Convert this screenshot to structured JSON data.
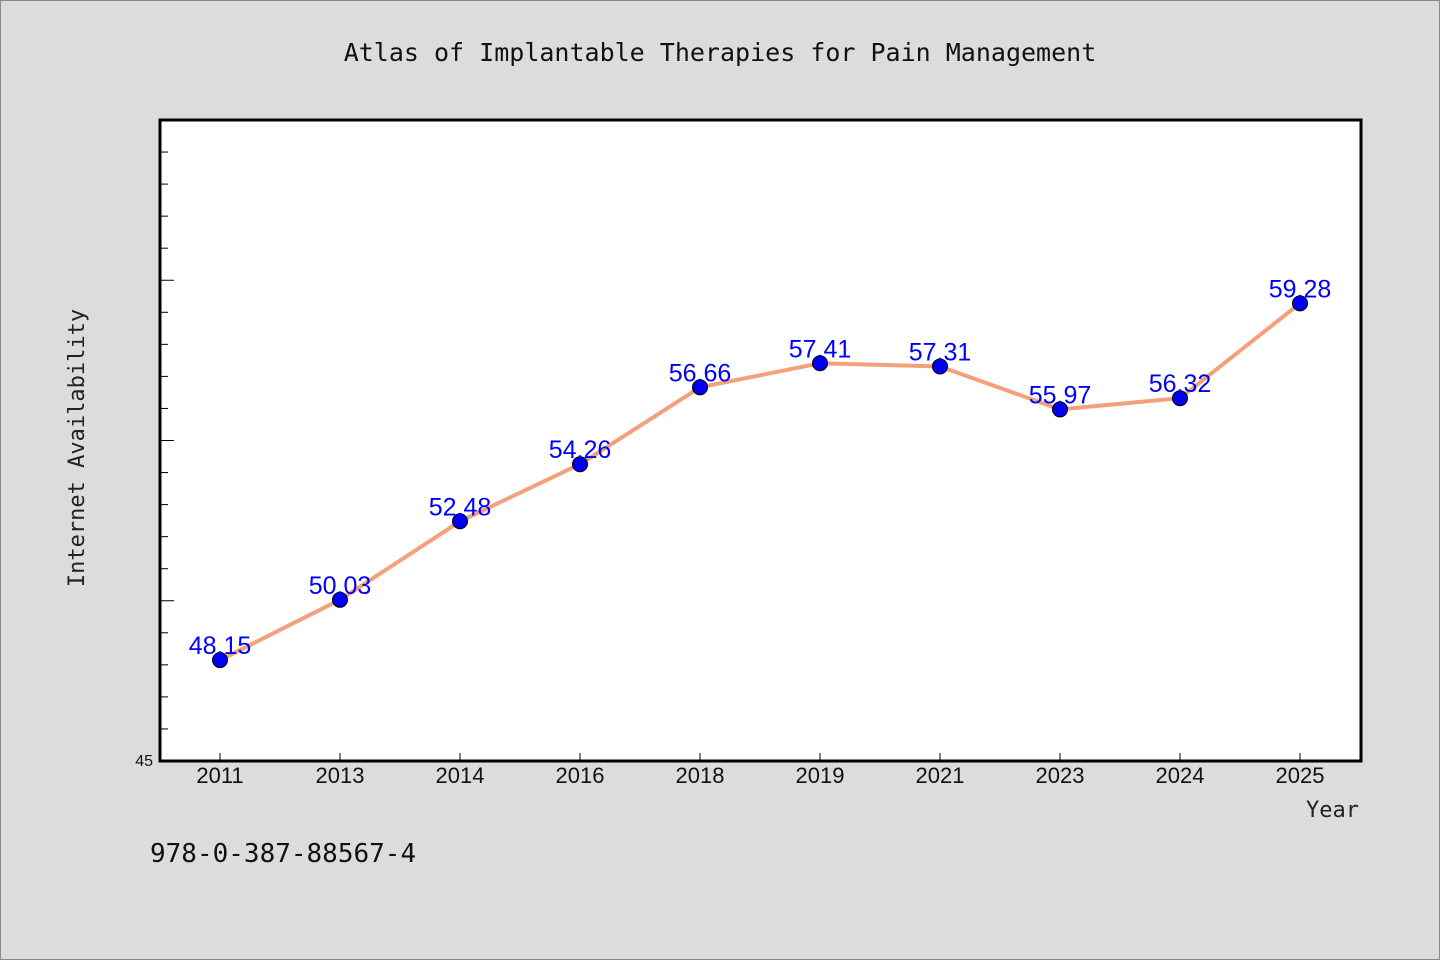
{
  "chart_data": {
    "type": "line",
    "title": "Atlas of Implantable Therapies for Pain Management",
    "xlabel": "Year",
    "ylabel": "Internet Availability",
    "categories": [
      "2011",
      "2013",
      "2014",
      "2016",
      "2018",
      "2019",
      "2021",
      "2023",
      "2024",
      "2025"
    ],
    "series": [
      {
        "values": [
          48.15,
          50.03,
          52.48,
          54.26,
          56.66,
          57.41,
          57.31,
          55.97,
          56.32,
          59.28
        ],
        "labels": [
          "48.15",
          "50.03",
          "52.48",
          "54.26",
          "56.66",
          "57.41",
          "57.31",
          "55.97",
          "56.32",
          "59.28"
        ]
      }
    ],
    "yticks": [
      45
    ],
    "ylim": [
      45,
      65
    ],
    "grid": false,
    "colors": {
      "line": "#f4a07a",
      "marker": "#0000ee",
      "label": "#0000ff"
    }
  },
  "footer_text": "978-0-387-88567-4"
}
